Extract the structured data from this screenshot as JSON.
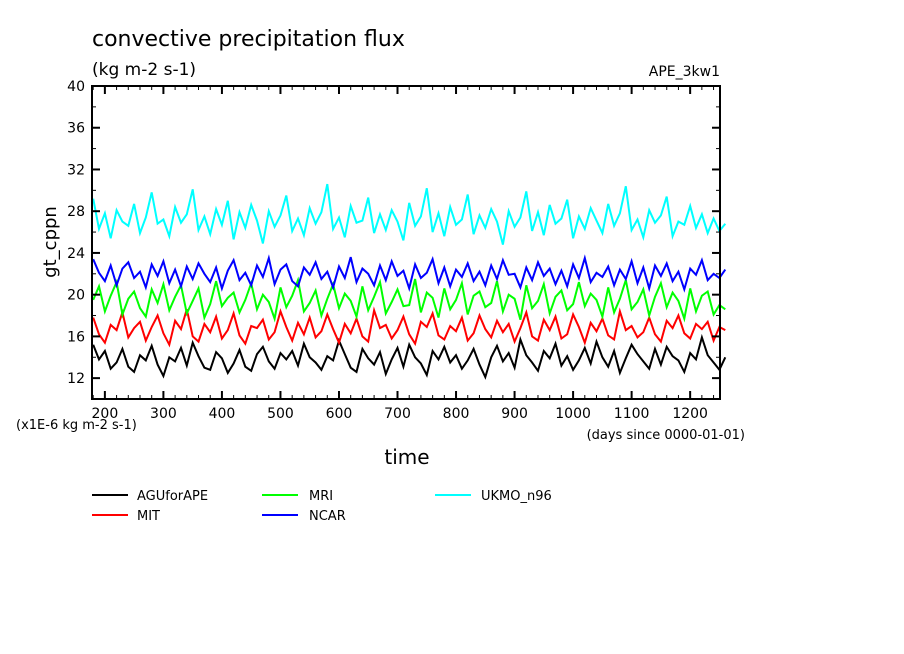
{
  "chart_data": {
    "type": "line",
    "title": "convective precipitation flux",
    "subtitle": "(kg m-2 s-1)",
    "experiment_label": "APE_3kw1",
    "xlabel": "time",
    "x_units": "(days since 0000-01-01)",
    "ylabel": "gt_cppn",
    "y_scale_note": "(x1E-6 kg m-2 s-1)",
    "xlim": [
      178,
      1251
    ],
    "ylim": [
      10,
      40
    ],
    "x_ticks": [
      200,
      300,
      400,
      500,
      600,
      700,
      800,
      900,
      1000,
      1100,
      1200
    ],
    "y_ticks": [
      12,
      16,
      20,
      24,
      28,
      32,
      36,
      40
    ],
    "grid": false,
    "legend_placement": "bottom",
    "x_start": 180,
    "x_step": 10,
    "series": [
      {
        "name": "AGUforAPE",
        "color": "#000000",
        "values": [
          15.2,
          13.8,
          14.6,
          12.9,
          13.5,
          14.8,
          13.1,
          12.6,
          14.2,
          13.7,
          15.1,
          13.3,
          12.2,
          14.0,
          13.6,
          14.9,
          13.2,
          15.4,
          14.1,
          13.0,
          12.8,
          14.5,
          13.9,
          12.5,
          13.4,
          14.7,
          13.1,
          12.7,
          14.3,
          15.0,
          13.6,
          12.9,
          14.4,
          13.8,
          14.6,
          13.2,
          15.3,
          14.0,
          13.5,
          12.8,
          14.1,
          13.7,
          15.6,
          14.3,
          13.0,
          12.6,
          14.8,
          13.9,
          13.3,
          14.5,
          12.4,
          13.8,
          14.9,
          13.1,
          15.2,
          14.0,
          13.4,
          12.3,
          14.6,
          13.8,
          15.0,
          13.5,
          14.2,
          12.9,
          13.7,
          14.8,
          13.3,
          12.1,
          14.0,
          15.1,
          13.6,
          14.4,
          13.0,
          15.7,
          14.2,
          13.5,
          12.7,
          14.6,
          13.9,
          15.3,
          13.2,
          14.1,
          12.8,
          13.7,
          14.9,
          13.4,
          15.5,
          14.0,
          13.1,
          14.6,
          12.5,
          13.9,
          15.2,
          14.3,
          13.6,
          12.9,
          14.8,
          13.3,
          15.0,
          14.1,
          13.7,
          12.6,
          14.4,
          13.8,
          15.9,
          14.2,
          13.5,
          12.8,
          14.0
        ]
      },
      {
        "name": "MIT",
        "color": "#ff0000",
        "values": [
          17.8,
          16.2,
          15.4,
          17.1,
          16.6,
          18.3,
          15.9,
          16.8,
          17.4,
          15.6,
          16.9,
          18.0,
          16.3,
          15.2,
          17.5,
          16.7,
          18.6,
          16.0,
          15.5,
          17.2,
          16.4,
          17.9,
          15.8,
          16.6,
          18.2,
          16.1,
          15.3,
          17.0,
          16.8,
          17.6,
          15.7,
          16.4,
          18.4,
          16.9,
          15.6,
          17.3,
          16.2,
          17.8,
          15.9,
          16.5,
          18.1,
          16.7,
          15.4,
          17.2,
          16.3,
          17.7,
          16.0,
          15.5,
          18.5,
          16.8,
          17.1,
          15.8,
          16.6,
          17.9,
          16.2,
          15.3,
          17.4,
          16.9,
          18.2,
          16.1,
          15.7,
          17.0,
          16.5,
          17.8,
          15.6,
          16.3,
          18.0,
          16.7,
          15.9,
          17.5,
          16.4,
          17.2,
          15.5,
          16.8,
          18.3,
          16.0,
          15.6,
          17.6,
          16.6,
          17.9,
          15.8,
          16.2,
          18.1,
          16.9,
          15.4,
          17.3,
          16.5,
          17.7,
          16.1,
          15.7,
          18.4,
          16.6,
          17.0,
          15.9,
          16.4,
          17.8,
          16.2,
          15.5,
          17.5,
          16.8,
          18.0,
          16.3,
          15.8,
          17.2,
          16.7,
          17.4,
          15.6,
          16.9,
          16.6
        ]
      },
      {
        "name": "MRI",
        "color": "#00ff00",
        "values": [
          19.5,
          20.8,
          18.4,
          19.9,
          21.2,
          18.1,
          19.6,
          20.3,
          18.7,
          17.9,
          20.5,
          19.2,
          21.0,
          18.5,
          19.8,
          20.9,
          18.2,
          19.4,
          20.6,
          17.8,
          19.1,
          21.3,
          18.9,
          19.7,
          20.2,
          18.3,
          19.5,
          21.1,
          18.6,
          20.0,
          19.3,
          17.7,
          20.7,
          18.8,
          19.9,
          21.4,
          18.4,
          19.2,
          20.4,
          18.0,
          19.6,
          21.0,
          18.7,
          20.1,
          19.4,
          17.9,
          20.8,
          18.5,
          19.8,
          21.2,
          18.2,
          19.3,
          20.5,
          18.9,
          19.0,
          21.5,
          18.3,
          20.2,
          19.7,
          17.8,
          20.6,
          18.6,
          19.5,
          21.1,
          18.1,
          19.9,
          20.3,
          18.8,
          19.2,
          21.3,
          18.4,
          20.0,
          19.6,
          17.6,
          20.9,
          18.7,
          19.4,
          21.0,
          18.2,
          19.8,
          20.4,
          18.5,
          19.1,
          21.2,
          18.9,
          20.1,
          19.5,
          17.9,
          20.7,
          18.3,
          19.6,
          21.4,
          18.6,
          19.3,
          20.5,
          18.0,
          19.8,
          21.1,
          18.8,
          20.2,
          19.4,
          17.7,
          20.6,
          18.4,
          19.9,
          20.3,
          18.1,
          19.0,
          18.6
        ]
      },
      {
        "name": "NCAR",
        "color": "#0000ff",
        "values": [
          23.4,
          22.1,
          21.3,
          22.8,
          20.9,
          22.5,
          23.1,
          21.6,
          22.2,
          20.7,
          22.9,
          21.8,
          23.2,
          21.1,
          22.4,
          20.8,
          22.7,
          21.5,
          23.0,
          22.0,
          21.2,
          22.6,
          20.6,
          22.3,
          23.3,
          21.4,
          22.1,
          20.9,
          22.8,
          21.7,
          23.5,
          21.0,
          22.4,
          22.9,
          21.3,
          20.8,
          22.6,
          21.9,
          23.1,
          21.5,
          22.2,
          20.7,
          22.7,
          21.6,
          23.6,
          21.2,
          22.5,
          22.0,
          20.9,
          22.8,
          21.4,
          23.2,
          21.8,
          22.3,
          20.6,
          22.9,
          21.6,
          22.1,
          23.4,
          21.1,
          22.6,
          20.8,
          22.4,
          21.7,
          23.0,
          21.3,
          22.2,
          20.9,
          22.8,
          21.5,
          23.3,
          21.9,
          22.0,
          20.7,
          22.6,
          21.4,
          23.1,
          21.8,
          22.5,
          21.0,
          22.3,
          20.8,
          22.9,
          21.6,
          23.5,
          21.2,
          22.1,
          21.7,
          22.7,
          20.9,
          22.4,
          21.5,
          23.2,
          21.1,
          22.6,
          20.6,
          22.8,
          21.8,
          23.0,
          21.3,
          22.2,
          20.5,
          22.5,
          21.9,
          23.3,
          21.4,
          22.0,
          21.6,
          22.4
        ]
      },
      {
        "name": "UKMO_n96",
        "color": "#00ffff",
        "values": [
          29.2,
          26.3,
          27.8,
          25.4,
          28.1,
          27.0,
          26.6,
          28.7,
          25.9,
          27.4,
          29.8,
          26.8,
          27.2,
          25.6,
          28.4,
          26.9,
          27.7,
          30.1,
          26.2,
          27.5,
          25.8,
          28.2,
          26.7,
          29.0,
          25.3,
          27.9,
          26.4,
          28.6,
          27.1,
          24.9,
          28.0,
          26.5,
          27.6,
          29.5,
          26.1,
          27.3,
          25.7,
          28.3,
          26.8,
          27.9,
          30.6,
          26.3,
          27.4,
          25.5,
          28.5,
          26.9,
          27.1,
          29.3,
          25.9,
          27.7,
          26.2,
          28.1,
          27.0,
          25.2,
          28.8,
          26.6,
          27.5,
          30.2,
          26.0,
          27.8,
          25.6,
          28.4,
          26.7,
          27.2,
          29.6,
          25.8,
          27.6,
          26.4,
          28.2,
          27.0,
          24.8,
          28.0,
          26.5,
          27.4,
          29.9,
          26.1,
          27.9,
          25.7,
          28.6,
          26.8,
          27.3,
          29.1,
          25.4,
          27.5,
          26.3,
          28.3,
          27.1,
          25.9,
          28.7,
          26.6,
          27.8,
          30.4,
          26.2,
          27.2,
          25.5,
          28.1,
          26.9,
          27.6,
          29.4,
          25.6,
          27.0,
          26.7,
          28.5,
          26.4,
          27.7,
          25.9,
          27.3,
          26.1,
          26.8
        ]
      }
    ]
  }
}
